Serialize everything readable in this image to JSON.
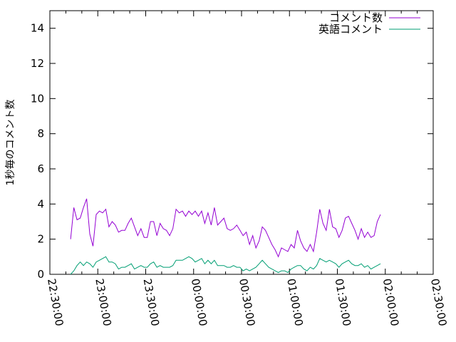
{
  "chart_data": {
    "type": "line",
    "title": "",
    "xlabel": "",
    "ylabel": "1秒毎のコメント数",
    "ylim": [
      0,
      15
    ],
    "yticks": [
      0,
      2,
      4,
      6,
      8,
      10,
      12,
      14
    ],
    "xlim": [
      "22:30:00",
      "02:30:00"
    ],
    "xticks": [
      "22:30:00",
      "23:00:00",
      "23:30:00",
      "00:00:00",
      "00:30:00",
      "01:00:00",
      "01:30:00",
      "02:00:00",
      "02:30:00"
    ],
    "grid": false,
    "legend_position": "top-right",
    "series": [
      {
        "name": "コメント数",
        "color": "#9400d3",
        "x": [
          "22:43",
          "22:45",
          "22:47",
          "22:49",
          "22:51",
          "22:53",
          "22:55",
          "22:57",
          "22:59",
          "23:01",
          "23:03",
          "23:05",
          "23:07",
          "23:09",
          "23:11",
          "23:13",
          "23:15",
          "23:17",
          "23:19",
          "23:21",
          "23:23",
          "23:25",
          "23:27",
          "23:29",
          "23:31",
          "23:33",
          "23:35",
          "23:37",
          "23:39",
          "23:41",
          "23:43",
          "23:45",
          "23:47",
          "23:49",
          "23:51",
          "23:53",
          "23:55",
          "23:57",
          "23:59",
          "00:01",
          "00:03",
          "00:05",
          "00:07",
          "00:09",
          "00:11",
          "00:13",
          "00:15",
          "00:17",
          "00:19",
          "00:21",
          "00:23",
          "00:25",
          "00:27",
          "00:29",
          "00:31",
          "00:33",
          "00:35",
          "00:37",
          "00:39",
          "00:41",
          "00:43",
          "00:45",
          "00:47",
          "00:49",
          "00:51",
          "00:53",
          "00:55",
          "00:57",
          "00:59",
          "01:01",
          "01:03",
          "01:05",
          "01:07",
          "01:09",
          "01:11",
          "01:13",
          "01:15",
          "01:17",
          "01:19",
          "01:21",
          "01:23",
          "01:25",
          "01:27",
          "01:29",
          "01:31",
          "01:33",
          "01:35",
          "01:37",
          "01:39",
          "01:41",
          "01:43",
          "01:45",
          "01:47",
          "01:49",
          "01:51",
          "01:53",
          "01:55",
          "01:57"
        ],
        "values": [
          2.0,
          3.8,
          3.1,
          3.2,
          3.8,
          4.3,
          2.3,
          1.6,
          3.4,
          3.6,
          3.5,
          3.7,
          2.7,
          3.0,
          2.8,
          2.4,
          2.5,
          2.5,
          2.9,
          3.2,
          2.7,
          2.2,
          2.6,
          2.1,
          2.1,
          3.0,
          3.0,
          2.2,
          2.9,
          2.6,
          2.5,
          2.2,
          2.6,
          3.7,
          3.5,
          3.6,
          3.3,
          3.6,
          3.4,
          3.6,
          3.3,
          3.6,
          2.9,
          3.5,
          2.8,
          3.8,
          2.8,
          3.0,
          3.2,
          2.6,
          2.5,
          2.6,
          2.8,
          2.5,
          2.2,
          2.4,
          1.7,
          2.2,
          1.5,
          1.9,
          2.7,
          2.5,
          2.1,
          1.7,
          1.4,
          1.0,
          1.5,
          1.4,
          1.3,
          1.7,
          1.5,
          2.5,
          1.9,
          1.5,
          1.3,
          1.7,
          1.3,
          2.4,
          3.7,
          2.9,
          2.5,
          3.7,
          2.7,
          2.6,
          2.1,
          2.5,
          3.2,
          3.3,
          2.9,
          2.5,
          2.0,
          2.6,
          2.1,
          2.4,
          2.1,
          2.2,
          3.0,
          3.4
        ]
      },
      {
        "name": "英語コメント",
        "color": "#009e73",
        "x": [
          "22:43",
          "22:45",
          "22:47",
          "22:49",
          "22:51",
          "22:53",
          "22:55",
          "22:57",
          "22:59",
          "23:01",
          "23:03",
          "23:05",
          "23:07",
          "23:09",
          "23:11",
          "23:13",
          "23:15",
          "23:17",
          "23:19",
          "23:21",
          "23:23",
          "23:25",
          "23:27",
          "23:29",
          "23:31",
          "23:33",
          "23:35",
          "23:37",
          "23:39",
          "23:41",
          "23:43",
          "23:45",
          "23:47",
          "23:49",
          "23:51",
          "23:53",
          "23:55",
          "23:57",
          "23:59",
          "00:01",
          "00:03",
          "00:05",
          "00:07",
          "00:09",
          "00:11",
          "00:13",
          "00:15",
          "00:17",
          "00:19",
          "00:21",
          "00:23",
          "00:25",
          "00:27",
          "00:29",
          "00:31",
          "00:33",
          "00:35",
          "00:37",
          "00:39",
          "00:41",
          "00:43",
          "00:45",
          "00:47",
          "00:49",
          "00:51",
          "00:53",
          "00:55",
          "00:57",
          "00:59",
          "01:01",
          "01:03",
          "01:05",
          "01:07",
          "01:09",
          "01:11",
          "01:13",
          "01:15",
          "01:17",
          "01:19",
          "01:21",
          "01:23",
          "01:25",
          "01:27",
          "01:29",
          "01:31",
          "01:33",
          "01:35",
          "01:37",
          "01:39",
          "01:41",
          "01:43",
          "01:45",
          "01:47",
          "01:49",
          "01:51",
          "01:53",
          "01:55",
          "01:57"
        ],
        "values": [
          0.0,
          0.2,
          0.5,
          0.7,
          0.5,
          0.7,
          0.6,
          0.4,
          0.7,
          0.8,
          0.9,
          1.0,
          0.7,
          0.7,
          0.6,
          0.3,
          0.4,
          0.4,
          0.5,
          0.6,
          0.3,
          0.4,
          0.5,
          0.4,
          0.4,
          0.6,
          0.7,
          0.4,
          0.5,
          0.4,
          0.4,
          0.4,
          0.5,
          0.8,
          0.8,
          0.8,
          0.9,
          1.0,
          0.9,
          0.7,
          0.8,
          0.9,
          0.6,
          0.8,
          0.6,
          0.8,
          0.5,
          0.5,
          0.5,
          0.4,
          0.4,
          0.5,
          0.4,
          0.4,
          0.2,
          0.3,
          0.2,
          0.3,
          0.4,
          0.6,
          0.8,
          0.6,
          0.4,
          0.3,
          0.2,
          0.1,
          0.2,
          0.2,
          0.1,
          0.3,
          0.4,
          0.5,
          0.5,
          0.3,
          0.2,
          0.4,
          0.3,
          0.5,
          0.9,
          0.8,
          0.7,
          0.8,
          0.7,
          0.6,
          0.4,
          0.6,
          0.7,
          0.8,
          0.6,
          0.5,
          0.5,
          0.6,
          0.4,
          0.5,
          0.3,
          0.4,
          0.5,
          0.6
        ]
      }
    ]
  }
}
